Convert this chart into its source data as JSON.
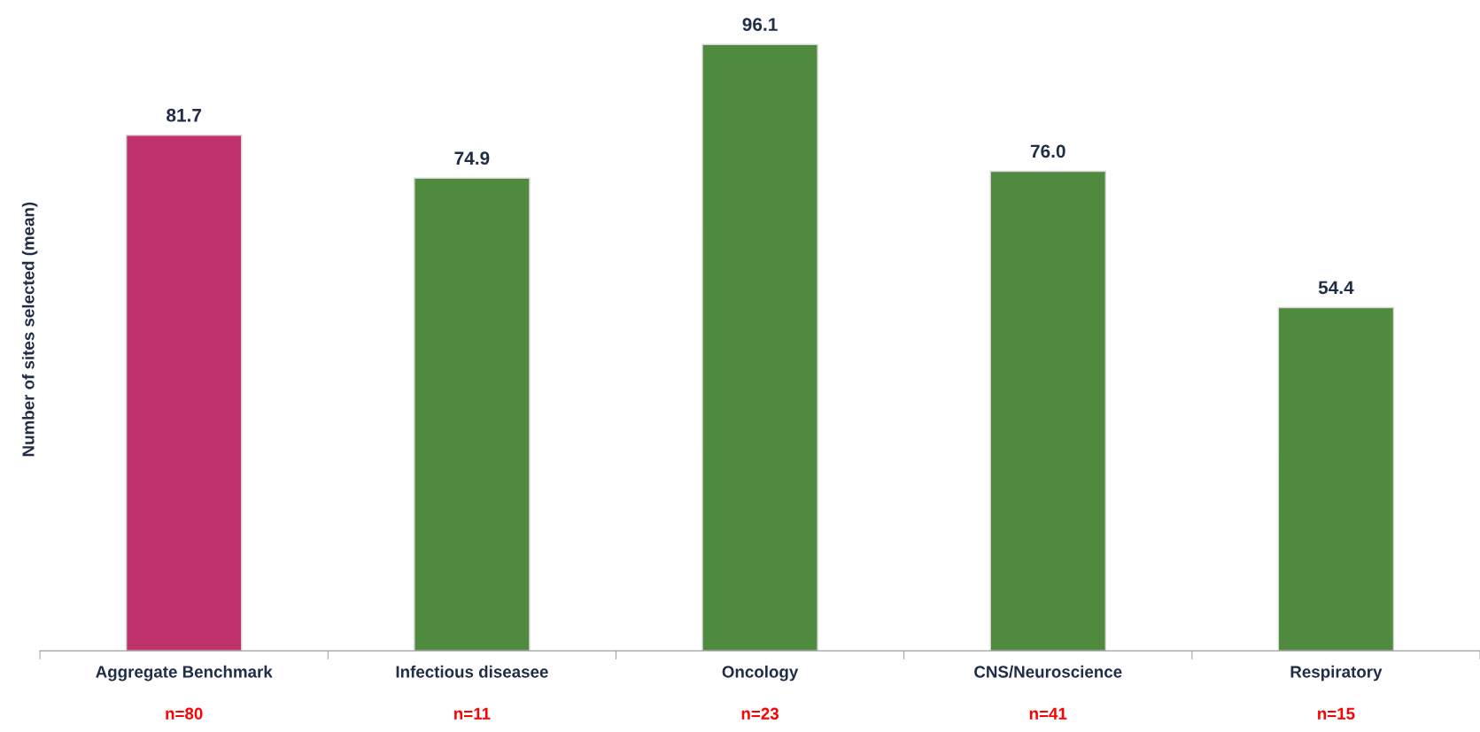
{
  "chart_data": {
    "type": "bar",
    "ylabel": "Number of sites selected (mean)",
    "categories": [
      "Aggregate Benchmark",
      "Infectious diseasee",
      "Oncology",
      "CNS/Neuroscience",
      "Respiratory"
    ],
    "values": [
      81.7,
      74.9,
      96.1,
      76.0,
      54.4
    ],
    "value_labels": [
      "81.7",
      "74.9",
      "96.1",
      "76.0",
      "54.4"
    ],
    "colors": [
      "#c0326c",
      "#4f8a3e",
      "#4f8a3e",
      "#4f8a3e",
      "#4f8a3e"
    ],
    "grid": false,
    "tick_labels": "x",
    "annotations": [
      "n=80",
      "n=11",
      "n=23",
      "n=41",
      "n=15"
    ]
  }
}
